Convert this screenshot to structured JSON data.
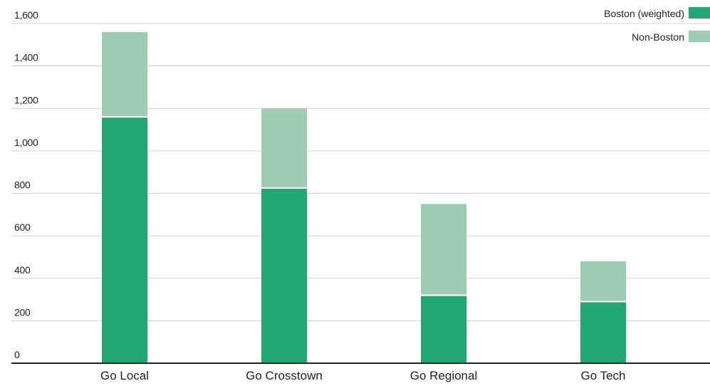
{
  "chart_data": {
    "type": "bar",
    "stacked": true,
    "categories": [
      "Go Local",
      "Go Crosstown",
      "Go Regional",
      "Go Tech"
    ],
    "series": [
      {
        "name": "Boston (weighted)",
        "color": "#22a673",
        "values": [
          1160,
          825,
          320,
          290
        ]
      },
      {
        "name": "Non-Boston",
        "color": "#9fcdb4",
        "values": [
          400,
          375,
          430,
          190
        ]
      }
    ],
    "ylim": [
      0,
      1600
    ],
    "yticks": [
      0,
      200,
      400,
      600,
      800,
      1000,
      1200,
      1400,
      1600
    ],
    "ytick_labels": [
      "0",
      "200",
      "400",
      "600",
      "800",
      "1,000",
      "1,200",
      "1,400",
      "1,600"
    ],
    "grid": true,
    "legend": "top-right"
  }
}
